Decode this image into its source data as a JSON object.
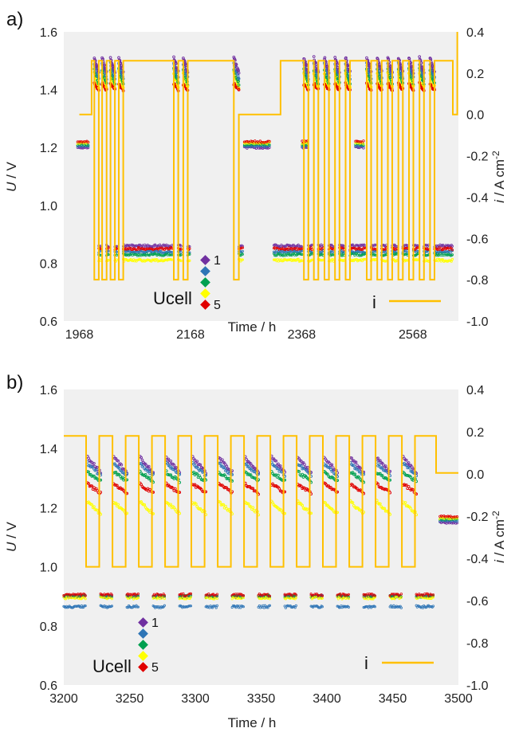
{
  "colors": {
    "cell1": "#7030a0",
    "cell2": "#2e75b6",
    "cell3": "#00a050",
    "cell4": "#ffff00",
    "cell5": "#e00000",
    "current": "#ffc000",
    "plotbg": "#f0f0f0"
  },
  "legend": {
    "ucell_label": "Ucell",
    "first_label": "1",
    "last_label": "5",
    "current_label": "i"
  },
  "chart_data": [
    {
      "type": "scatter",
      "panel_label": "a)",
      "xlabel": "Time / h",
      "ylabel": "U / V",
      "y2label": "i / A cm-2",
      "xlim": [
        1940,
        2650
      ],
      "ylim": [
        0.6,
        1.6
      ],
      "y2lim": [
        -1.0,
        0.4
      ],
      "xticks": [
        "1968",
        "2168",
        "2368",
        "2568"
      ],
      "xtick_values": [
        1968,
        2168,
        2368,
        2568
      ],
      "yticks": [
        "0.6",
        "0.8",
        "1.0",
        "1.2",
        "1.4",
        "1.6"
      ],
      "y2ticks": [
        "-1.0",
        "-0.8",
        "-0.6",
        "-0.4",
        "-0.2",
        "0.0",
        "0.2",
        "0.4"
      ],
      "series": [
        {
          "name": "1",
          "pulse_high": 1.51,
          "pulse_low": 1.46,
          "idle": 0.86
        },
        {
          "name": "2",
          "pulse_high": 1.49,
          "pulse_low": 1.44,
          "idle": 0.84
        },
        {
          "name": "3",
          "pulse_high": 1.47,
          "pulse_low": 1.42,
          "idle": 0.83
        },
        {
          "name": "4",
          "pulse_high": 1.46,
          "pulse_low": 1.41,
          "idle": 0.81
        },
        {
          "name": "5",
          "pulse_high": 1.42,
          "pulse_low": 1.4,
          "idle": 0.85
        }
      ],
      "active_windows": [
        [
          1995,
          2003
        ],
        [
          2009,
          2017
        ],
        [
          2024,
          2032
        ],
        [
          2039,
          2047
        ],
        [
          2138,
          2146
        ],
        [
          2155,
          2163
        ],
        [
          2246,
          2255
        ],
        [
          2372,
          2380
        ],
        [
          2390,
          2398
        ],
        [
          2409,
          2417
        ],
        [
          2428,
          2436
        ],
        [
          2447,
          2455
        ],
        [
          2485,
          2493
        ],
        [
          2504,
          2512
        ],
        [
          2523,
          2531
        ],
        [
          2542,
          2550
        ],
        [
          2561,
          2569
        ],
        [
          2580,
          2588
        ],
        [
          2599,
          2607
        ]
      ],
      "idle_windows": [
        [
          2003,
          2007
        ],
        [
          2017,
          2022
        ],
        [
          2032,
          2037
        ],
        [
          2047,
          2052
        ],
        [
          2052,
          2135
        ],
        [
          2146,
          2152
        ],
        [
          2163,
          2168
        ],
        [
          2255,
          2262
        ],
        [
          2318,
          2370
        ],
        [
          2380,
          2388
        ],
        [
          2398,
          2407
        ],
        [
          2417,
          2426
        ],
        [
          2436,
          2445
        ],
        [
          2455,
          2483
        ],
        [
          2493,
          2502
        ],
        [
          2512,
          2521
        ],
        [
          2531,
          2540
        ],
        [
          2550,
          2559
        ],
        [
          2569,
          2578
        ],
        [
          2588,
          2597
        ],
        [
          2607,
          2640
        ]
      ],
      "ocv_windows": [
        [
          1965,
          1985
        ],
        [
          2265,
          2312
        ],
        [
          2369,
          2380
        ],
        [
          2465,
          2480
        ]
      ],
      "ocv_value": 1.21,
      "current_points": [
        [
          1968,
          0.0
        ],
        [
          1990,
          0.0
        ],
        [
          1990,
          0.26
        ],
        [
          1995,
          0.26
        ],
        [
          1995,
          -0.8
        ],
        [
          2003,
          -0.8
        ],
        [
          2003,
          0.26
        ],
        [
          2009,
          0.26
        ],
        [
          2009,
          -0.8
        ],
        [
          2017,
          -0.8
        ],
        [
          2017,
          0.26
        ],
        [
          2024,
          0.26
        ],
        [
          2024,
          -0.8
        ],
        [
          2032,
          -0.8
        ],
        [
          2032,
          0.26
        ],
        [
          2039,
          0.26
        ],
        [
          2039,
          -0.8
        ],
        [
          2047,
          -0.8
        ],
        [
          2047,
          0.26
        ],
        [
          2138,
          0.26
        ],
        [
          2138,
          -0.8
        ],
        [
          2146,
          -0.8
        ],
        [
          2146,
          0.26
        ],
        [
          2155,
          0.26
        ],
        [
          2155,
          -0.8
        ],
        [
          2163,
          -0.8
        ],
        [
          2163,
          0.26
        ],
        [
          2168,
          0.26
        ],
        [
          2208,
          0.26
        ],
        [
          2246,
          0.26
        ],
        [
          2246,
          -0.8
        ],
        [
          2255,
          -0.8
        ],
        [
          2255,
          0.0
        ],
        [
          2330,
          0.0
        ],
        [
          2330,
          0.26
        ],
        [
          2372,
          0.26
        ],
        [
          2372,
          -0.8
        ],
        [
          2380,
          -0.8
        ],
        [
          2380,
          0.26
        ],
        [
          2390,
          0.26
        ],
        [
          2390,
          -0.8
        ],
        [
          2398,
          -0.8
        ],
        [
          2398,
          0.26
        ],
        [
          2409,
          0.26
        ],
        [
          2409,
          -0.8
        ],
        [
          2417,
          -0.8
        ],
        [
          2417,
          0.26
        ],
        [
          2428,
          0.26
        ],
        [
          2428,
          -0.8
        ],
        [
          2436,
          -0.8
        ],
        [
          2436,
          0.26
        ],
        [
          2447,
          0.26
        ],
        [
          2447,
          -0.8
        ],
        [
          2455,
          -0.8
        ],
        [
          2455,
          0.26
        ],
        [
          2485,
          0.26
        ],
        [
          2485,
          -0.8
        ],
        [
          2493,
          -0.8
        ],
        [
          2493,
          0.26
        ],
        [
          2504,
          0.26
        ],
        [
          2504,
          -0.8
        ],
        [
          2512,
          -0.8
        ],
        [
          2512,
          0.26
        ],
        [
          2523,
          0.26
        ],
        [
          2523,
          -0.8
        ],
        [
          2531,
          -0.8
        ],
        [
          2531,
          0.26
        ],
        [
          2542,
          0.26
        ],
        [
          2542,
          -0.8
        ],
        [
          2550,
          -0.8
        ],
        [
          2550,
          0.26
        ],
        [
          2561,
          0.26
        ],
        [
          2561,
          -0.8
        ],
        [
          2569,
          -0.8
        ],
        [
          2569,
          0.26
        ],
        [
          2580,
          0.26
        ],
        [
          2580,
          -0.8
        ],
        [
          2588,
          -0.8
        ],
        [
          2588,
          0.26
        ],
        [
          2599,
          0.26
        ],
        [
          2599,
          -0.8
        ],
        [
          2607,
          -0.8
        ],
        [
          2607,
          0.26
        ],
        [
          2640,
          0.26
        ],
        [
          2640,
          0.0
        ],
        [
          2648,
          0.0
        ],
        [
          2648,
          0.4
        ]
      ]
    },
    {
      "type": "scatter",
      "panel_label": "b)",
      "xlabel": "Time / h",
      "ylabel": "U / V",
      "y2label": "i / A cm-2",
      "xlim": [
        3200,
        3500
      ],
      "ylim": [
        0.6,
        1.6
      ],
      "y2lim": [
        -1.0,
        0.4
      ],
      "xticks": [
        "3200",
        "3250",
        "3300",
        "3350",
        "3400",
        "3450",
        "3500"
      ],
      "xtick_values": [
        3200,
        3250,
        3300,
        3350,
        3400,
        3450,
        3500
      ],
      "yticks": [
        "0.6",
        "0.8",
        "1.0",
        "1.2",
        "1.4",
        "1.6"
      ],
      "y2ticks": [
        "-1.0",
        "-0.8",
        "-0.6",
        "-0.4",
        "-0.2",
        "0.0",
        "0.2",
        "0.4"
      ],
      "series": [
        {
          "name": "1",
          "pulse_high": 1.37,
          "pulse_low": 1.32,
          "idle": 0.9
        },
        {
          "name": "2",
          "pulse_high": 1.35,
          "pulse_low": 1.31,
          "idle": 0.865
        },
        {
          "name": "3",
          "pulse_high": 1.32,
          "pulse_low": 1.29,
          "idle": 0.9
        },
        {
          "name": "4",
          "pulse_high": 1.22,
          "pulse_low": 1.18,
          "idle": 0.895
        },
        {
          "name": "5",
          "pulse_high": 1.28,
          "pulse_low": 1.25,
          "idle": 0.905
        }
      ],
      "active_windows": [
        [
          3218,
          3228
        ],
        [
          3238,
          3248
        ],
        [
          3258,
          3268
        ],
        [
          3278,
          3288
        ],
        [
          3298,
          3308
        ],
        [
          3318,
          3328
        ],
        [
          3338,
          3348
        ],
        [
          3358,
          3368
        ],
        [
          3378,
          3388
        ],
        [
          3398,
          3408
        ],
        [
          3418,
          3428
        ],
        [
          3438,
          3448
        ],
        [
          3458,
          3468
        ]
      ],
      "idle_windows": [
        [
          3200,
          3217
        ],
        [
          3228,
          3237
        ],
        [
          3248,
          3257
        ],
        [
          3268,
          3277
        ],
        [
          3288,
          3297
        ],
        [
          3308,
          3317
        ],
        [
          3328,
          3337
        ],
        [
          3348,
          3357
        ],
        [
          3368,
          3377
        ],
        [
          3388,
          3397
        ],
        [
          3408,
          3417
        ],
        [
          3428,
          3437
        ],
        [
          3448,
          3457
        ],
        [
          3468,
          3481
        ]
      ],
      "ocv_windows": [
        [
          3486,
          3499
        ]
      ],
      "ocv_value": 1.16,
      "current_points": [
        [
          3200,
          0.18
        ],
        [
          3217,
          0.18
        ],
        [
          3217,
          -0.44
        ],
        [
          3227,
          -0.44
        ],
        [
          3227,
          0.18
        ],
        [
          3237,
          0.18
        ],
        [
          3237,
          -0.44
        ],
        [
          3247,
          -0.44
        ],
        [
          3247,
          0.18
        ],
        [
          3257,
          0.18
        ],
        [
          3257,
          -0.44
        ],
        [
          3267,
          -0.44
        ],
        [
          3267,
          0.18
        ],
        [
          3277,
          0.18
        ],
        [
          3277,
          -0.44
        ],
        [
          3287,
          -0.44
        ],
        [
          3287,
          0.18
        ],
        [
          3297,
          0.18
        ],
        [
          3297,
          -0.44
        ],
        [
          3307,
          -0.44
        ],
        [
          3307,
          0.18
        ],
        [
          3317,
          0.18
        ],
        [
          3317,
          -0.44
        ],
        [
          3327,
          -0.44
        ],
        [
          3327,
          0.18
        ],
        [
          3337,
          0.18
        ],
        [
          3337,
          -0.44
        ],
        [
          3347,
          -0.44
        ],
        [
          3347,
          0.18
        ],
        [
          3357,
          0.18
        ],
        [
          3357,
          -0.44
        ],
        [
          3367,
          -0.44
        ],
        [
          3367,
          0.18
        ],
        [
          3377,
          0.18
        ],
        [
          3377,
          -0.44
        ],
        [
          3387,
          -0.44
        ],
        [
          3387,
          0.18
        ],
        [
          3397,
          0.18
        ],
        [
          3397,
          -0.44
        ],
        [
          3407,
          -0.44
        ],
        [
          3407,
          0.18
        ],
        [
          3417,
          0.18
        ],
        [
          3417,
          -0.44
        ],
        [
          3427,
          -0.44
        ],
        [
          3427,
          0.18
        ],
        [
          3437,
          0.18
        ],
        [
          3437,
          -0.44
        ],
        [
          3447,
          -0.44
        ],
        [
          3447,
          0.18
        ],
        [
          3457,
          0.18
        ],
        [
          3457,
          -0.44
        ],
        [
          3467,
          -0.44
        ],
        [
          3467,
          0.18
        ],
        [
          3483,
          0.18
        ],
        [
          3483,
          0.005
        ],
        [
          3500,
          0.005
        ]
      ]
    }
  ]
}
